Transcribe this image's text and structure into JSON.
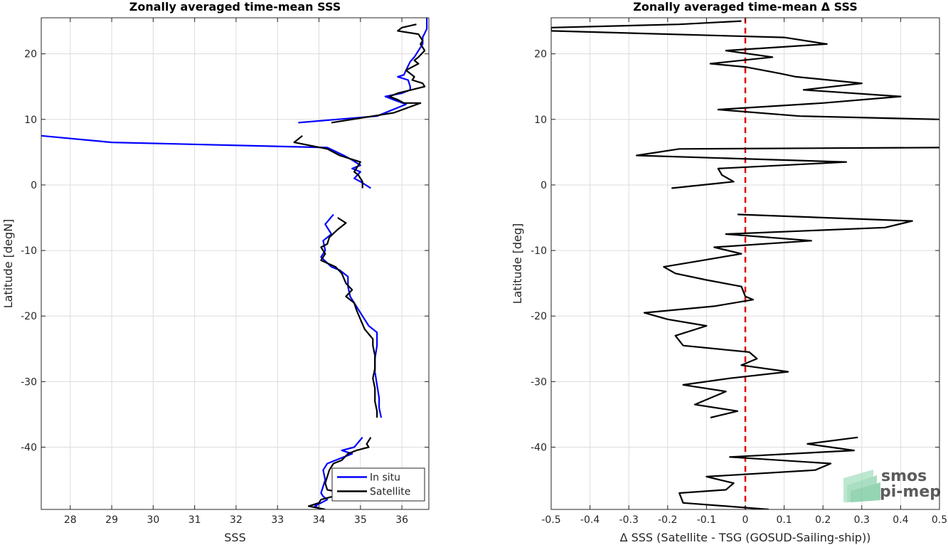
{
  "chart_data": [
    {
      "type": "line",
      "title": "Zonally averaged time-mean SSS",
      "xlabel": "SSS",
      "ylabel": "Latitude [degN]",
      "xlim": [
        27.3,
        36.65
      ],
      "ylim": [
        -49.5,
        25.5
      ],
      "xticks": [
        28,
        29,
        30,
        31,
        32,
        33,
        34,
        35,
        36
      ],
      "yticks": [
        -40,
        -30,
        -20,
        -10,
        0,
        10,
        20
      ],
      "grid": true,
      "legend": "bottom-right",
      "series": [
        {
          "name": "In situ",
          "color": "#0000ff",
          "segments": [
            [
              [
                36.6,
                25.5
              ],
              [
                36.6,
                23.8
              ],
              [
                36.5,
                22.5
              ],
              [
                36.5,
                21.5
              ],
              [
                36.4,
                20.5
              ],
              [
                36.3,
                19.5
              ],
              [
                36.2,
                18.8
              ],
              [
                36.1,
                17.5
              ],
              [
                36.05,
                16.8
              ],
              [
                35.9,
                16.5
              ],
              [
                36.15,
                16.0
              ],
              [
                36.2,
                15.0
              ],
              [
                36.2,
                14.5
              ],
              [
                36.0,
                14.0
              ],
              [
                35.6,
                13.5
              ],
              [
                35.8,
                13.0
              ],
              [
                36.1,
                12.3
              ],
              [
                35.4,
                10.5
              ],
              [
                33.5,
                9.5
              ]
            ],
            [
              [
                27.3,
                7.5
              ],
              [
                29.0,
                6.5
              ],
              [
                34.2,
                5.7
              ],
              [
                34.6,
                4.5
              ],
              [
                34.8,
                3.8
              ],
              [
                35.0,
                3.0
              ],
              [
                34.8,
                2.5
              ],
              [
                35.0,
                2.0
              ],
              [
                34.85,
                1.0
              ],
              [
                35.0,
                0.5
              ],
              [
                35.25,
                -0.5
              ]
            ],
            [
              [
                34.35,
                -4.5
              ],
              [
                34.15,
                -6.0
              ],
              [
                34.3,
                -7.5
              ],
              [
                34.1,
                -8.5
              ],
              [
                34.15,
                -10.0
              ],
              [
                34.05,
                -11.0
              ],
              [
                34.3,
                -12.5
              ],
              [
                34.5,
                -13.0
              ],
              [
                34.7,
                -14.0
              ],
              [
                34.7,
                -15.5
              ],
              [
                34.75,
                -17.0
              ],
              [
                34.9,
                -18.5
              ],
              [
                35.05,
                -20.0
              ],
              [
                35.2,
                -21.5
              ],
              [
                35.4,
                -22.5
              ],
              [
                35.4,
                -24.5
              ],
              [
                35.35,
                -26.5
              ],
              [
                35.35,
                -28.5
              ],
              [
                35.4,
                -30.5
              ],
              [
                35.45,
                -32.5
              ],
              [
                35.45,
                -34.0
              ],
              [
                35.5,
                -35.5
              ]
            ],
            [
              [
                35.05,
                -38.5
              ],
              [
                34.85,
                -40.0
              ],
              [
                34.55,
                -40.5
              ],
              [
                34.8,
                -41.0
              ],
              [
                34.6,
                -41.5
              ],
              [
                34.2,
                -42.5
              ],
              [
                34.1,
                -43.5
              ],
              [
                34.15,
                -45.0
              ],
              [
                34.05,
                -47.0
              ],
              [
                34.1,
                -47.5
              ],
              [
                34.2,
                -48.0
              ],
              [
                33.9,
                -49.0
              ],
              [
                34.05,
                -49.5
              ]
            ]
          ]
        },
        {
          "name": "Satellite",
          "color": "#000000",
          "segments": [
            [
              [
                36.35,
                24.5
              ],
              [
                36.0,
                24.0
              ],
              [
                35.9,
                23.5
              ],
              [
                36.4,
                23.0
              ],
              [
                36.5,
                22.0
              ],
              [
                36.45,
                21.5
              ],
              [
                36.55,
                20.5
              ],
              [
                36.4,
                19.5
              ],
              [
                36.3,
                19.0
              ],
              [
                36.4,
                18.5
              ],
              [
                36.1,
                17.5
              ],
              [
                36.3,
                16.5
              ],
              [
                36.25,
                16.0
              ],
              [
                36.5,
                15.5
              ],
              [
                36.55,
                15.0
              ],
              [
                35.9,
                14.0
              ],
              [
                35.7,
                13.5
              ],
              [
                35.9,
                13.0
              ],
              [
                36.05,
                12.5
              ],
              [
                36.45,
                12.5
              ],
              [
                35.8,
                11.0
              ],
              [
                35.3,
                10.5
              ],
              [
                34.3,
                9.5
              ]
            ],
            [
              [
                33.6,
                7.5
              ],
              [
                33.4,
                6.5
              ],
              [
                34.2,
                5.5
              ],
              [
                34.5,
                4.5
              ],
              [
                35.0,
                3.5
              ],
              [
                34.85,
                2.0
              ],
              [
                34.95,
                1.5
              ],
              [
                35.05,
                0.5
              ],
              [
                35.05,
                -0.5
              ]
            ],
            [
              [
                34.45,
                -5.0
              ],
              [
                34.65,
                -5.8
              ],
              [
                34.45,
                -6.8
              ],
              [
                34.25,
                -8.0
              ],
              [
                34.2,
                -9.0
              ],
              [
                34.05,
                -9.5
              ],
              [
                34.15,
                -10.5
              ],
              [
                34.05,
                -11.5
              ],
              [
                34.4,
                -12.5
              ],
              [
                34.55,
                -13.5
              ],
              [
                34.65,
                -15.0
              ],
              [
                34.8,
                -16.0
              ],
              [
                34.65,
                -17.0
              ],
              [
                34.85,
                -18.0
              ],
              [
                34.9,
                -19.0
              ],
              [
                35.0,
                -20.5
              ],
              [
                35.1,
                -22.0
              ],
              [
                35.3,
                -23.5
              ],
              [
                35.3,
                -24.5
              ],
              [
                35.35,
                -26.0
              ],
              [
                35.35,
                -28.0
              ],
              [
                35.3,
                -29.5
              ],
              [
                35.35,
                -31.0
              ],
              [
                35.35,
                -33.0
              ],
              [
                35.4,
                -34.5
              ],
              [
                35.4,
                -35.5
              ]
            ],
            [
              [
                35.25,
                -38.5
              ],
              [
                35.15,
                -39.5
              ],
              [
                35.2,
                -40.0
              ],
              [
                34.9,
                -40.5
              ],
              [
                34.7,
                -41.0
              ],
              [
                34.55,
                -42.0
              ],
              [
                34.35,
                -42.5
              ],
              [
                34.25,
                -43.5
              ],
              [
                34.2,
                -44.5
              ],
              [
                34.15,
                -45.5
              ],
              [
                34.2,
                -46.5
              ],
              [
                34.6,
                -47.0
              ],
              [
                34.35,
                -47.5
              ],
              [
                34.05,
                -48.0
              ],
              [
                34.0,
                -48.5
              ],
              [
                33.75,
                -49.0
              ],
              [
                34.15,
                -49.5
              ]
            ]
          ]
        }
      ]
    },
    {
      "type": "line",
      "title": "Zonally averaged time-mean Δ SSS",
      "xlabel": "Δ SSS (Satellite - TSG (GOSUD-Sailing-ship))",
      "ylabel": "Latitude [deg]",
      "xlim": [
        -0.5,
        0.5
      ],
      "ylim": [
        -49.5,
        25.5
      ],
      "xticks": [
        -0.5,
        -0.4,
        -0.3,
        -0.2,
        -0.1,
        0,
        0.1,
        0.2,
        0.3,
        0.4,
        0.5
      ],
      "yticks": [
        -40,
        -30,
        -20,
        -10,
        0,
        10,
        20
      ],
      "grid": true,
      "zero_line_color": "#e00000",
      "series": [
        {
          "color": "#000000",
          "segments": [
            [
              [
                -0.01,
                25.0
              ],
              [
                -0.17,
                24.5
              ],
              [
                -0.5,
                24.0
              ],
              [
                -0.5,
                23.5
              ],
              [
                0.1,
                22.5
              ],
              [
                0.21,
                21.5
              ],
              [
                -0.05,
                20.5
              ],
              [
                0.07,
                19.5
              ],
              [
                -0.09,
                18.5
              ],
              [
                0.0,
                18.0
              ],
              [
                0.09,
                17.0
              ],
              [
                0.13,
                16.5
              ],
              [
                0.3,
                15.5
              ],
              [
                0.15,
                14.5
              ],
              [
                0.4,
                13.5
              ],
              [
                0.2,
                12.5
              ],
              [
                -0.07,
                11.5
              ],
              [
                0.14,
                10.5
              ],
              [
                0.5,
                10.0
              ]
            ],
            [
              [
                0.5,
                5.7
              ],
              [
                -0.17,
                5.5
              ],
              [
                -0.28,
                4.5
              ],
              [
                0.26,
                3.5
              ],
              [
                -0.07,
                2.5
              ],
              [
                -0.06,
                1.5
              ],
              [
                -0.03,
                0.5
              ],
              [
                -0.19,
                -0.5
              ]
            ],
            [
              [
                -0.02,
                -4.5
              ],
              [
                0.43,
                -5.5
              ],
              [
                0.36,
                -6.5
              ],
              [
                -0.05,
                -7.5
              ],
              [
                0.17,
                -8.5
              ],
              [
                -0.08,
                -9.5
              ],
              [
                -0.01,
                -10.5
              ],
              [
                -0.11,
                -11.5
              ],
              [
                -0.21,
                -12.5
              ],
              [
                -0.18,
                -13.5
              ],
              [
                -0.1,
                -14.5
              ],
              [
                -0.01,
                -15.5
              ],
              [
                0.0,
                -17.0
              ],
              [
                0.02,
                -17.5
              ],
              [
                -0.08,
                -18.5
              ],
              [
                -0.26,
                -19.5
              ],
              [
                -0.2,
                -20.5
              ],
              [
                -0.1,
                -21.5
              ],
              [
                -0.18,
                -23.0
              ],
              [
                -0.16,
                -24.5
              ],
              [
                0.01,
                -25.5
              ],
              [
                0.03,
                -26.5
              ],
              [
                -0.01,
                -27.5
              ],
              [
                0.11,
                -28.5
              ],
              [
                -0.04,
                -29.5
              ],
              [
                -0.16,
                -30.5
              ],
              [
                -0.05,
                -31.5
              ],
              [
                -0.09,
                -32.5
              ],
              [
                -0.13,
                -33.5
              ],
              [
                -0.02,
                -34.5
              ],
              [
                -0.09,
                -35.5
              ]
            ],
            [
              [
                0.29,
                -38.5
              ],
              [
                0.16,
                -39.5
              ],
              [
                0.28,
                -40.5
              ],
              [
                -0.04,
                -41.5
              ],
              [
                0.22,
                -42.5
              ],
              [
                0.18,
                -43.5
              ],
              [
                -0.1,
                -44.5
              ],
              [
                -0.03,
                -45.5
              ],
              [
                -0.05,
                -46.5
              ],
              [
                -0.17,
                -47.0
              ],
              [
                -0.16,
                -48.5
              ],
              [
                0.06,
                -49.5
              ]
            ]
          ]
        }
      ]
    }
  ],
  "legend": {
    "in_situ": "In situ",
    "satellite": "Satellite"
  },
  "logo": {
    "line1": "smos",
    "line2": "pi-mep",
    "color": "#7fc9a0"
  }
}
